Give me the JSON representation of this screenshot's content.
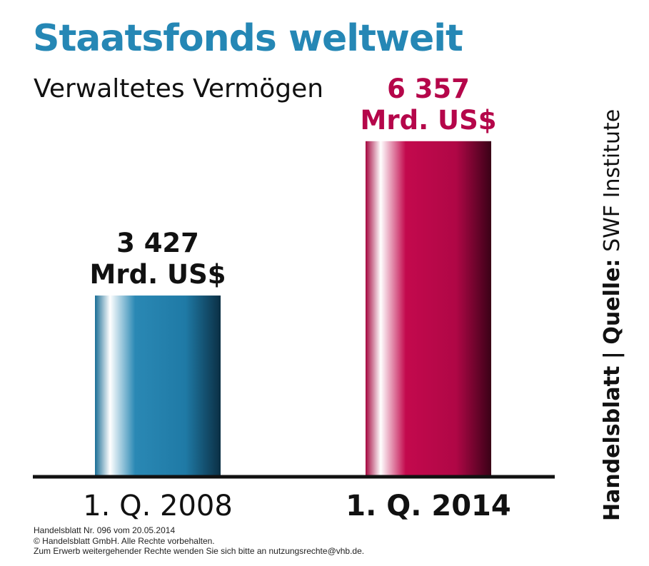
{
  "header": {
    "title": "Staatsfonds weltweit",
    "subtitle": "Verwaltetes Vermögen"
  },
  "colors": {
    "title": "#2587b5",
    "bar_2008": "#2a88b4",
    "bar_2014": "#c3094d",
    "label_2014": "#b5064a",
    "axis": "#111111",
    "text": "#111111"
  },
  "chart_data": {
    "type": "bar",
    "categories": [
      "1. Q. 2008",
      "1. Q. 2014"
    ],
    "values": [
      3427,
      6357
    ],
    "value_labels": [
      "3 427",
      "6 357"
    ],
    "unit_label": "Mrd. US$",
    "title": "Staatsfonds weltweit",
    "subtitle": "Verwaltetes Vermögen",
    "ylim": [
      0,
      8400
    ],
    "grid": false,
    "legend": "none"
  },
  "source": {
    "publisher": "Handelsblatt",
    "separator": "|",
    "label": "Quelle:",
    "name": "SWF Institute"
  },
  "footer": {
    "line1": "Handelsblatt Nr. 096 vom 20.05.2014",
    "line2": "© Handelsblatt GmbH. Alle Rechte vorbehalten.",
    "line3": "Zum Erwerb weitergehender Rechte wenden Sie sich bitte an nutzungsrechte@vhb.de."
  }
}
